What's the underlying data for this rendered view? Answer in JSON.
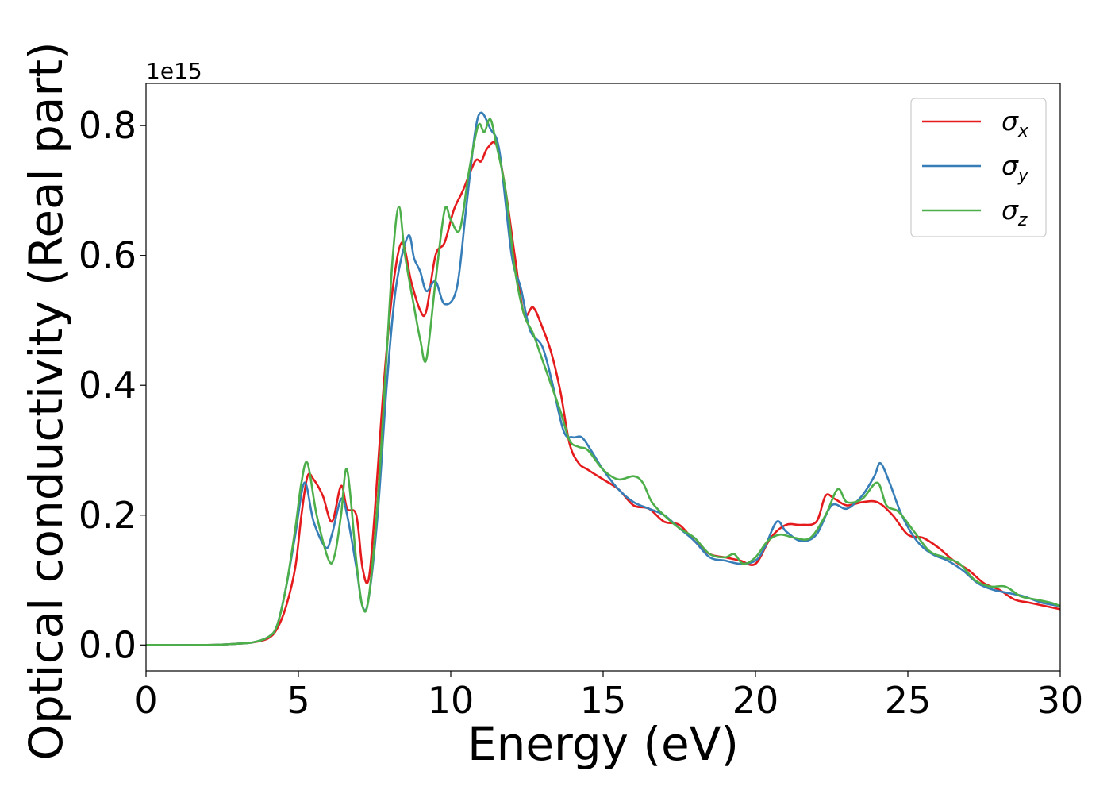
{
  "chart_data": {
    "type": "line",
    "title": "",
    "xlabel": "Energy (eV)",
    "ylabel": "Optical conductivity (Real part)",
    "y_offset_label": "1e15",
    "xlim": [
      0,
      30
    ],
    "ylim": [
      -0.04,
      0.865
    ],
    "x_ticks": [
      0,
      5,
      10,
      15,
      20,
      25,
      30
    ],
    "x_tick_labels": [
      "0",
      "5",
      "10",
      "15",
      "20",
      "25",
      "30"
    ],
    "y_ticks": [
      0.0,
      0.2,
      0.4,
      0.6,
      0.8
    ],
    "y_tick_labels": [
      "0.0",
      "0.2",
      "0.4",
      "0.6",
      "0.8"
    ],
    "grid": false,
    "legend_position": "top-right",
    "series": [
      {
        "name": "σx",
        "symbol": "σ",
        "subscript": "x",
        "color": "#e41a1c",
        "points": [
          [
            0,
            0.0
          ],
          [
            2,
            0.0
          ],
          [
            3,
            0.002
          ],
          [
            3.5,
            0.004
          ],
          [
            4,
            0.01
          ],
          [
            4.3,
            0.025
          ],
          [
            4.6,
            0.06
          ],
          [
            4.9,
            0.12
          ],
          [
            5.1,
            0.2
          ],
          [
            5.3,
            0.26
          ],
          [
            5.5,
            0.255
          ],
          [
            5.8,
            0.23
          ],
          [
            6.1,
            0.19
          ],
          [
            6.4,
            0.245
          ],
          [
            6.6,
            0.21
          ],
          [
            6.9,
            0.2
          ],
          [
            7.1,
            0.12
          ],
          [
            7.3,
            0.1
          ],
          [
            7.5,
            0.2
          ],
          [
            7.8,
            0.4
          ],
          [
            8.1,
            0.55
          ],
          [
            8.4,
            0.62
          ],
          [
            8.7,
            0.56
          ],
          [
            9.0,
            0.515
          ],
          [
            9.2,
            0.515
          ],
          [
            9.5,
            0.6
          ],
          [
            9.8,
            0.62
          ],
          [
            10.1,
            0.67
          ],
          [
            10.4,
            0.7
          ],
          [
            10.8,
            0.745
          ],
          [
            11.0,
            0.745
          ],
          [
            11.2,
            0.765
          ],
          [
            11.5,
            0.77
          ],
          [
            11.8,
            0.7
          ],
          [
            12.1,
            0.6
          ],
          [
            12.4,
            0.51
          ],
          [
            12.7,
            0.52
          ],
          [
            13.0,
            0.49
          ],
          [
            13.3,
            0.45
          ],
          [
            13.6,
            0.39
          ],
          [
            13.9,
            0.31
          ],
          [
            14.2,
            0.28
          ],
          [
            14.5,
            0.27
          ],
          [
            15.0,
            0.255
          ],
          [
            15.5,
            0.24
          ],
          [
            16.0,
            0.215
          ],
          [
            16.5,
            0.21
          ],
          [
            17.0,
            0.19
          ],
          [
            17.5,
            0.185
          ],
          [
            18.0,
            0.16
          ],
          [
            18.5,
            0.14
          ],
          [
            19.0,
            0.135
          ],
          [
            19.5,
            0.13
          ],
          [
            20.0,
            0.125
          ],
          [
            20.5,
            0.165
          ],
          [
            21.0,
            0.185
          ],
          [
            21.5,
            0.185
          ],
          [
            22.0,
            0.19
          ],
          [
            22.3,
            0.23
          ],
          [
            22.6,
            0.225
          ],
          [
            23.0,
            0.215
          ],
          [
            23.5,
            0.22
          ],
          [
            24.0,
            0.22
          ],
          [
            24.5,
            0.2
          ],
          [
            25.0,
            0.17
          ],
          [
            25.5,
            0.165
          ],
          [
            26.0,
            0.15
          ],
          [
            26.5,
            0.13
          ],
          [
            27.0,
            0.115
          ],
          [
            27.5,
            0.095
          ],
          [
            28.0,
            0.085
          ],
          [
            28.5,
            0.07
          ],
          [
            29.0,
            0.065
          ],
          [
            29.5,
            0.06
          ],
          [
            30.0,
            0.055
          ]
        ]
      },
      {
        "name": "σy",
        "symbol": "σ",
        "subscript": "y",
        "color": "#377eb8",
        "points": [
          [
            0,
            0.0
          ],
          [
            2,
            0.0
          ],
          [
            3,
            0.002
          ],
          [
            3.5,
            0.004
          ],
          [
            4,
            0.012
          ],
          [
            4.3,
            0.03
          ],
          [
            4.6,
            0.09
          ],
          [
            4.9,
            0.17
          ],
          [
            5.2,
            0.25
          ],
          [
            5.5,
            0.19
          ],
          [
            5.9,
            0.15
          ],
          [
            6.1,
            0.17
          ],
          [
            6.4,
            0.225
          ],
          [
            6.6,
            0.2
          ],
          [
            6.9,
            0.12
          ],
          [
            7.1,
            0.06
          ],
          [
            7.3,
            0.07
          ],
          [
            7.6,
            0.2
          ],
          [
            7.9,
            0.4
          ],
          [
            8.2,
            0.55
          ],
          [
            8.6,
            0.63
          ],
          [
            8.8,
            0.595
          ],
          [
            9.0,
            0.575
          ],
          [
            9.2,
            0.545
          ],
          [
            9.5,
            0.56
          ],
          [
            9.8,
            0.525
          ],
          [
            10.2,
            0.55
          ],
          [
            10.5,
            0.67
          ],
          [
            10.8,
            0.79
          ],
          [
            11.0,
            0.82
          ],
          [
            11.3,
            0.795
          ],
          [
            11.6,
            0.76
          ],
          [
            12.0,
            0.6
          ],
          [
            12.3,
            0.55
          ],
          [
            12.6,
            0.485
          ],
          [
            13.0,
            0.46
          ],
          [
            13.3,
            0.41
          ],
          [
            13.7,
            0.33
          ],
          [
            14.0,
            0.32
          ],
          [
            14.3,
            0.32
          ],
          [
            14.6,
            0.3
          ],
          [
            15.0,
            0.27
          ],
          [
            15.5,
            0.24
          ],
          [
            16.0,
            0.22
          ],
          [
            16.5,
            0.21
          ],
          [
            17.0,
            0.2
          ],
          [
            17.5,
            0.18
          ],
          [
            18.0,
            0.16
          ],
          [
            18.5,
            0.135
          ],
          [
            19.0,
            0.13
          ],
          [
            19.5,
            0.125
          ],
          [
            20.0,
            0.13
          ],
          [
            20.3,
            0.15
          ],
          [
            20.7,
            0.19
          ],
          [
            21.0,
            0.175
          ],
          [
            21.5,
            0.16
          ],
          [
            22.0,
            0.17
          ],
          [
            22.5,
            0.215
          ],
          [
            23.0,
            0.21
          ],
          [
            23.5,
            0.23
          ],
          [
            23.9,
            0.26
          ],
          [
            24.1,
            0.28
          ],
          [
            24.4,
            0.25
          ],
          [
            24.8,
            0.2
          ],
          [
            25.3,
            0.16
          ],
          [
            25.8,
            0.14
          ],
          [
            26.3,
            0.13
          ],
          [
            26.8,
            0.115
          ],
          [
            27.3,
            0.095
          ],
          [
            27.8,
            0.085
          ],
          [
            28.3,
            0.08
          ],
          [
            28.8,
            0.075
          ],
          [
            29.4,
            0.065
          ],
          [
            30.0,
            0.06
          ]
        ]
      },
      {
        "name": "σz",
        "symbol": "σ",
        "subscript": "z",
        "color": "#4daf4a",
        "points": [
          [
            0,
            0.0
          ],
          [
            2,
            0.0
          ],
          [
            3,
            0.002
          ],
          [
            3.5,
            0.004
          ],
          [
            4,
            0.012
          ],
          [
            4.3,
            0.03
          ],
          [
            4.6,
            0.09
          ],
          [
            4.9,
            0.18
          ],
          [
            5.1,
            0.25
          ],
          [
            5.3,
            0.28
          ],
          [
            5.6,
            0.2
          ],
          [
            6.0,
            0.13
          ],
          [
            6.2,
            0.14
          ],
          [
            6.4,
            0.2
          ],
          [
            6.6,
            0.27
          ],
          [
            6.9,
            0.13
          ],
          [
            7.1,
            0.06
          ],
          [
            7.3,
            0.07
          ],
          [
            7.6,
            0.22
          ],
          [
            7.9,
            0.45
          ],
          [
            8.1,
            0.6
          ],
          [
            8.3,
            0.675
          ],
          [
            8.5,
            0.6
          ],
          [
            8.8,
            0.52
          ],
          [
            9.0,
            0.47
          ],
          [
            9.2,
            0.44
          ],
          [
            9.5,
            0.56
          ],
          [
            9.8,
            0.67
          ],
          [
            10.0,
            0.655
          ],
          [
            10.3,
            0.64
          ],
          [
            10.6,
            0.73
          ],
          [
            10.9,
            0.8
          ],
          [
            11.1,
            0.79
          ],
          [
            11.3,
            0.81
          ],
          [
            11.5,
            0.77
          ],
          [
            11.8,
            0.7
          ],
          [
            12.1,
            0.58
          ],
          [
            12.4,
            0.51
          ],
          [
            12.7,
            0.48
          ],
          [
            13.0,
            0.44
          ],
          [
            13.3,
            0.4
          ],
          [
            13.6,
            0.36
          ],
          [
            13.9,
            0.315
          ],
          [
            14.2,
            0.305
          ],
          [
            14.5,
            0.3
          ],
          [
            15.0,
            0.27
          ],
          [
            15.5,
            0.255
          ],
          [
            16.0,
            0.26
          ],
          [
            16.3,
            0.25
          ],
          [
            16.6,
            0.22
          ],
          [
            17.0,
            0.2
          ],
          [
            17.5,
            0.18
          ],
          [
            18.0,
            0.165
          ],
          [
            18.5,
            0.14
          ],
          [
            19.0,
            0.135
          ],
          [
            19.3,
            0.14
          ],
          [
            19.6,
            0.125
          ],
          [
            20.0,
            0.135
          ],
          [
            20.4,
            0.16
          ],
          [
            20.8,
            0.17
          ],
          [
            21.3,
            0.165
          ],
          [
            21.8,
            0.165
          ],
          [
            22.3,
            0.2
          ],
          [
            22.7,
            0.24
          ],
          [
            23.0,
            0.22
          ],
          [
            23.5,
            0.225
          ],
          [
            24.0,
            0.25
          ],
          [
            24.3,
            0.215
          ],
          [
            24.7,
            0.205
          ],
          [
            25.2,
            0.175
          ],
          [
            25.7,
            0.145
          ],
          [
            26.2,
            0.135
          ],
          [
            26.7,
            0.125
          ],
          [
            27.2,
            0.1
          ],
          [
            27.7,
            0.09
          ],
          [
            28.2,
            0.09
          ],
          [
            28.7,
            0.075
          ],
          [
            29.2,
            0.07
          ],
          [
            29.7,
            0.065
          ],
          [
            30.0,
            0.06
          ]
        ]
      }
    ]
  }
}
